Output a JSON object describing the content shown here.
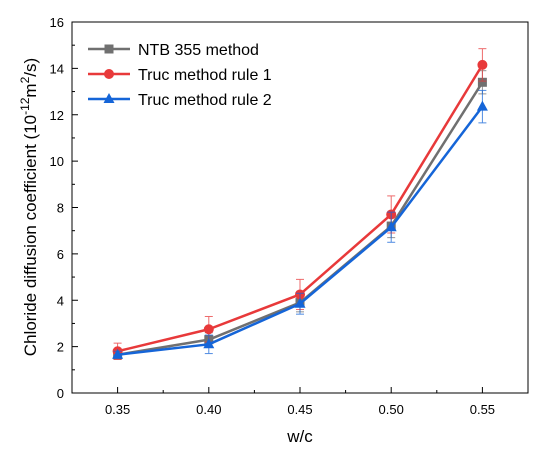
{
  "chart_data": {
    "type": "line",
    "xlabel": "w/c",
    "ylabel_parts": {
      "main": "Chloride diffusion coefficient (10",
      "exp1": "-12",
      "mid": "m",
      "exp2": "2",
      "end": "/s)"
    },
    "xlim": [
      0.325,
      0.575
    ],
    "ylim": [
      0,
      16
    ],
    "x_ticks": [
      0.35,
      0.4,
      0.45,
      0.5,
      0.55
    ],
    "x_tick_labels": [
      "0.35",
      "0.40",
      "0.45",
      "0.50",
      "0.55"
    ],
    "y_ticks": [
      0,
      2,
      4,
      6,
      8,
      10,
      12,
      14,
      16
    ],
    "y_tick_labels": [
      "0",
      "2",
      "4",
      "6",
      "8",
      "10",
      "12",
      "14",
      "16"
    ],
    "x": [
      0.35,
      0.4,
      0.45,
      0.5,
      0.55
    ],
    "legend_position": "top-left",
    "grid": false,
    "series": [
      {
        "name": "NTB 355 method",
        "color": "#707070",
        "marker": "square",
        "values": [
          1.65,
          2.3,
          3.9,
          7.2,
          13.4
        ],
        "errors": [
          0.2,
          0.3,
          0.4,
          0.5,
          0.5
        ]
      },
      {
        "name": "Truc method rule 1",
        "color": "#e8393a",
        "marker": "circle",
        "values": [
          1.8,
          2.75,
          4.25,
          7.7,
          14.15
        ],
        "errors": [
          0.35,
          0.55,
          0.65,
          0.8,
          0.7
        ]
      },
      {
        "name": "Truc method rule 2",
        "color": "#1565d8",
        "marker": "triangle",
        "values": [
          1.65,
          2.1,
          3.85,
          7.15,
          12.35
        ],
        "errors": [
          0.15,
          0.4,
          0.45,
          0.65,
          0.7
        ]
      }
    ]
  }
}
